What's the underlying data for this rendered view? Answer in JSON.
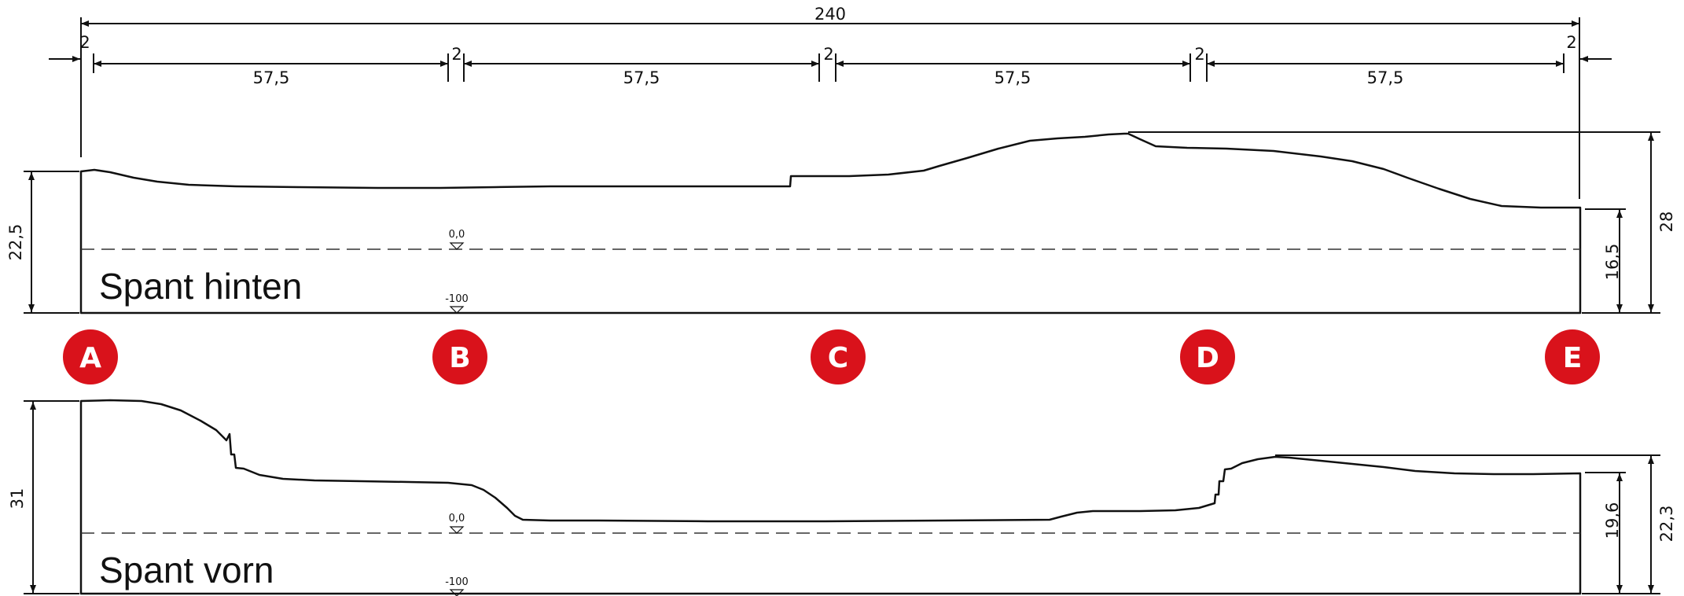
{
  "total_dimension": "240",
  "gap_label": "2",
  "segment_label": "57,5",
  "upper_panel": {
    "title": "Spant hinten",
    "left_height": "22,5",
    "right_height": "16,5",
    "peak_height": "28",
    "level_zero": "0,0",
    "level_bottom": "-100"
  },
  "lower_panel": {
    "title": "Spant vorn",
    "left_height": "31",
    "right_height": "19,6",
    "peak_height": "22,3",
    "level_zero": "0,0",
    "level_bottom": "-100"
  },
  "markers": [
    "A",
    "B",
    "C",
    "D",
    "E"
  ],
  "colors": {
    "marker": "#d9121b",
    "line": "#111111"
  }
}
